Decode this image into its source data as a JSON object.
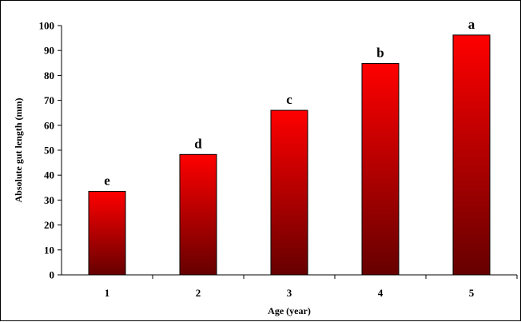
{
  "chart_data": {
    "type": "bar",
    "categories": [
      "1",
      "2",
      "3",
      "4",
      "5"
    ],
    "values": [
      33.5,
      48.3,
      66,
      84.8,
      96.2
    ],
    "data_labels": [
      "e",
      "d",
      "c",
      "b",
      "a"
    ],
    "title": "",
    "xlabel": "Age (year)",
    "ylabel": "Absolute gut length (mm)",
    "ylim": [
      0,
      100
    ],
    "yticks": [
      "0",
      "10",
      "20",
      "30",
      "40",
      "50",
      "60",
      "70",
      "80",
      "90",
      "100"
    ],
    "grid": false,
    "legend": "none",
    "colors": {
      "bar_top": "#ff0000",
      "bar_bottom": "#660000",
      "axis": "#000000"
    }
  }
}
